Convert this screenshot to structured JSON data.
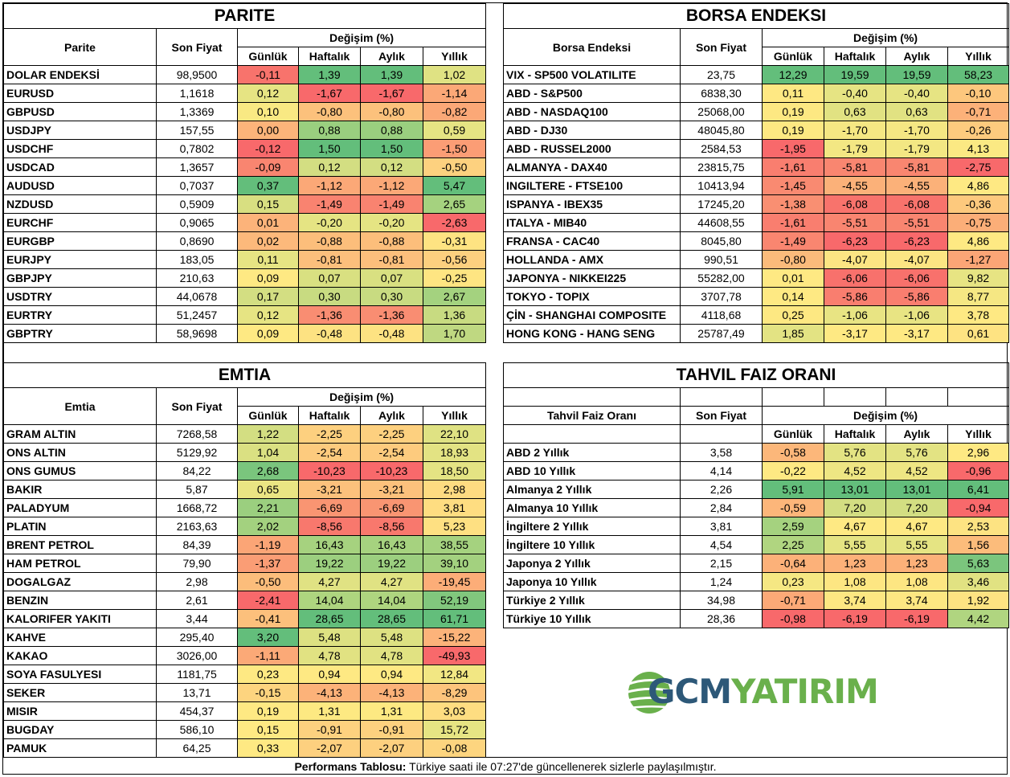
{
  "common": {
    "price_header": "Son Fiyat",
    "change_header": "Değişim (%)",
    "periods": [
      "Günlük",
      "Haftalık",
      "Aylık",
      "Yıllık"
    ]
  },
  "parite": {
    "title": "PARITE",
    "name_header": "Parite",
    "rows": [
      {
        "name": "DOLAR ENDEKSİ",
        "price": "98,9500",
        "values": [
          "-0,11",
          "1,39",
          "1,39",
          "1,02"
        ]
      },
      {
        "name": "EURUSD",
        "price": "1,1618",
        "values": [
          "0,12",
          "-1,67",
          "-1,67",
          "-1,14"
        ]
      },
      {
        "name": "GBPUSD",
        "price": "1,3369",
        "values": [
          "0,10",
          "-0,80",
          "-0,80",
          "-0,82"
        ]
      },
      {
        "name": "USDJPY",
        "price": "157,55",
        "values": [
          "0,00",
          "0,88",
          "0,88",
          "0,59"
        ]
      },
      {
        "name": "USDCHF",
        "price": "0,7802",
        "values": [
          "-0,12",
          "1,50",
          "1,50",
          "-1,50"
        ]
      },
      {
        "name": "USDCAD",
        "price": "1,3657",
        "values": [
          "-0,09",
          "0,12",
          "0,12",
          "-0,50"
        ]
      },
      {
        "name": "AUDUSD",
        "price": "0,7037",
        "values": [
          "0,37",
          "-1,12",
          "-1,12",
          "5,47"
        ]
      },
      {
        "name": "NZDUSD",
        "price": "0,5909",
        "values": [
          "0,15",
          "-1,49",
          "-1,49",
          "2,65"
        ]
      },
      {
        "name": "EURCHF",
        "price": "0,9065",
        "values": [
          "0,01",
          "-0,20",
          "-0,20",
          "-2,63"
        ]
      },
      {
        "name": "EURGBP",
        "price": "0,8690",
        "values": [
          "0,02",
          "-0,88",
          "-0,88",
          "-0,31"
        ]
      },
      {
        "name": "EURJPY",
        "price": "183,05",
        "values": [
          "0,11",
          "-0,81",
          "-0,81",
          "-0,56"
        ]
      },
      {
        "name": "GBPJPY",
        "price": "210,63",
        "values": [
          "0,09",
          "0,07",
          "0,07",
          "-0,25"
        ]
      },
      {
        "name": "USDTRY",
        "price": "44,0678",
        "values": [
          "0,17",
          "0,30",
          "0,30",
          "2,67"
        ]
      },
      {
        "name": "EURTRY",
        "price": "51,2457",
        "values": [
          "0,12",
          "-1,36",
          "-1,36",
          "1,36"
        ]
      },
      {
        "name": "GBPTRY",
        "price": "58,9698",
        "values": [
          "0,09",
          "-0,48",
          "-0,48",
          "1,70"
        ]
      }
    ],
    "colors": [
      [
        "#f8736c",
        "#63be7b",
        "#63be7b",
        "#dfe283"
      ],
      [
        "#e6e483",
        "#f8696b",
        "#f8696b",
        "#fba877"
      ],
      [
        "#f9e983",
        "#fcc17c",
        "#fcc17c",
        "#fba877"
      ],
      [
        "#fcb47a",
        "#9acf7f",
        "#9acf7f",
        "#e6e483"
      ],
      [
        "#f8696b",
        "#63be7b",
        "#63be7b",
        "#fb9d75"
      ],
      [
        "#f98570",
        "#d3de82",
        "#d3de82",
        "#fdd17f"
      ],
      [
        "#63be7b",
        "#fba877",
        "#fba877",
        "#63be7b"
      ],
      [
        "#d8df81",
        "#f98370",
        "#f98370",
        "#a5d27f"
      ],
      [
        "#fcb37a",
        "#e5e483",
        "#e5e483",
        "#f8696b"
      ],
      [
        "#fcb97b",
        "#fcbe7b",
        "#fcbe7b",
        "#fee382"
      ],
      [
        "#e6e483",
        "#fcbf7c",
        "#fcbf7c",
        "#fdd07f"
      ],
      [
        "#fee983",
        "#d9e081",
        "#d9e081",
        "#fee582"
      ],
      [
        "#d3de82",
        "#c8db81",
        "#c8db81",
        "#a4d27f"
      ],
      [
        "#e6e483",
        "#f98d72",
        "#f98d72",
        "#c8db81"
      ],
      [
        "#fee983",
        "#fde282",
        "#fde282",
        "#bfd881"
      ]
    ]
  },
  "borsa": {
    "title": "BORSA ENDEKSI",
    "name_header": "Borsa Endeksi",
    "rows": [
      {
        "name": "VIX  - SP500 VOLATILITE",
        "price": "23,75",
        "values": [
          "12,29",
          "19,59",
          "19,59",
          "58,23"
        ]
      },
      {
        "name": "ABD - S&P500",
        "price": "6838,30",
        "values": [
          "0,11",
          "-0,40",
          "-0,40",
          "-0,10"
        ]
      },
      {
        "name": "ABD - NASDAQ100",
        "price": "25068,00",
        "values": [
          "0,19",
          "0,63",
          "0,63",
          "-0,71"
        ]
      },
      {
        "name": "ABD - DJ30",
        "price": "48045,80",
        "values": [
          "0,19",
          "-1,70",
          "-1,70",
          "-0,26"
        ]
      },
      {
        "name": "ABD - RUSSEL2000",
        "price": "2584,53",
        "values": [
          "-1,95",
          "-1,79",
          "-1,79",
          "4,13"
        ]
      },
      {
        "name": "ALMANYA - DAX40",
        "price": "23815,75",
        "values": [
          "-1,61",
          "-5,81",
          "-5,81",
          "-2,75"
        ]
      },
      {
        "name": "INGILTERE - FTSE100",
        "price": "10413,94",
        "values": [
          "-1,45",
          "-4,55",
          "-4,55",
          "4,86"
        ]
      },
      {
        "name": "ISPANYA - IBEX35",
        "price": "17245,20",
        "values": [
          "-1,38",
          "-6,08",
          "-6,08",
          "-0,36"
        ]
      },
      {
        "name": "ITALYA - MIB40",
        "price": "44608,55",
        "values": [
          "-1,61",
          "-5,51",
          "-5,51",
          "-0,75"
        ]
      },
      {
        "name": "FRANSA - CAC40",
        "price": "8045,80",
        "values": [
          "-1,49",
          "-6,23",
          "-6,23",
          "4,86"
        ]
      },
      {
        "name": "HOLLANDA - AMX",
        "price": "990,51",
        "values": [
          "-0,80",
          "-4,07",
          "-4,07",
          "-1,27"
        ]
      },
      {
        "name": "JAPONYA - NIKKEI225",
        "price": "55282,00",
        "values": [
          "0,01",
          "-6,06",
          "-6,06",
          "9,82"
        ]
      },
      {
        "name": "TOKYO - TOPIX",
        "price": "3707,78",
        "values": [
          "0,14",
          "-5,86",
          "-5,86",
          "8,77"
        ]
      },
      {
        "name": "ÇİN - SHANGHAI COMPOSITE",
        "price": "4118,68",
        "values": [
          "0,25",
          "-1,06",
          "-1,06",
          "3,78"
        ]
      },
      {
        "name": "HONG KONG - HANG SENG",
        "price": "25787,49",
        "values": [
          "1,85",
          "-3,17",
          "-3,17",
          "0,61"
        ]
      }
    ],
    "colors": [
      [
        "#63be7b",
        "#63be7b",
        "#63be7b",
        "#63be7b"
      ],
      [
        "#fee883",
        "#e6e483",
        "#e6e483",
        "#fdc77d"
      ],
      [
        "#fde882",
        "#e1e282",
        "#e1e282",
        "#fcb179"
      ],
      [
        "#fde882",
        "#f5e783",
        "#f5e783",
        "#fdcb7e"
      ],
      [
        "#f8696b",
        "#f3e783",
        "#f3e783",
        "#fbe983"
      ],
      [
        "#f97e6f",
        "#f98670",
        "#f98670",
        "#f8696b"
      ],
      [
        "#f98a71",
        "#fbb179",
        "#fbb179",
        "#fee983"
      ],
      [
        "#f98f72",
        "#f8736c",
        "#f8736c",
        "#fdc97d"
      ],
      [
        "#f97e6f",
        "#f98570",
        "#f98570",
        "#fbae78"
      ],
      [
        "#f98670",
        "#f8696b",
        "#f8696b",
        "#fee983"
      ],
      [
        "#fbbb7b",
        "#fce583",
        "#fce583",
        "#fba576"
      ],
      [
        "#fee983",
        "#f8716c",
        "#f8716c",
        "#e7e483"
      ],
      [
        "#fee983",
        "#f97e6f",
        "#f97e6f",
        "#f5e783"
      ],
      [
        "#fde882",
        "#e8e483",
        "#e8e483",
        "#fee983"
      ],
      [
        "#e3e383",
        "#fee983",
        "#fee983",
        "#fee382"
      ]
    ]
  },
  "emtia": {
    "title": "EMTIA",
    "name_header": "Emtia",
    "rows": [
      {
        "name": "GRAM ALTIN",
        "price": "7268,58",
        "values": [
          "1,22",
          "-2,25",
          "-2,25",
          "22,10"
        ]
      },
      {
        "name": "ONS ALTIN",
        "price": "5129,92",
        "values": [
          "1,04",
          "-2,54",
          "-2,54",
          "18,93"
        ]
      },
      {
        "name": "ONS GUMUS",
        "price": "84,22",
        "values": [
          "2,68",
          "-10,23",
          "-10,23",
          "18,50"
        ]
      },
      {
        "name": "BAKIR",
        "price": "5,87",
        "values": [
          "0,65",
          "-3,21",
          "-3,21",
          "2,98"
        ]
      },
      {
        "name": "PALADYUM",
        "price": "1668,72",
        "values": [
          "2,21",
          "-6,69",
          "-6,69",
          "3,81"
        ]
      },
      {
        "name": "PLATIN",
        "price": "2163,63",
        "values": [
          "2,02",
          "-8,56",
          "-8,56",
          "5,23"
        ]
      },
      {
        "name": "BRENT PETROL",
        "price": "84,39",
        "values": [
          "-1,19",
          "16,43",
          "16,43",
          "38,55"
        ]
      },
      {
        "name": "HAM PETROL",
        "price": "79,90",
        "values": [
          "-1,37",
          "19,22",
          "19,22",
          "39,10"
        ]
      },
      {
        "name": "DOGALGAZ",
        "price": "2,98",
        "values": [
          "-0,50",
          "4,27",
          "4,27",
          "-19,45"
        ]
      },
      {
        "name": "BENZIN",
        "price": "2,61",
        "values": [
          "-2,41",
          "14,04",
          "14,04",
          "52,19"
        ]
      },
      {
        "name": "KALORIFER YAKITI",
        "price": "3,44",
        "values": [
          "-0,41",
          "28,65",
          "28,65",
          "61,71"
        ]
      },
      {
        "name": "KAHVE",
        "price": "295,40",
        "values": [
          "3,20",
          "5,48",
          "5,48",
          "-15,22"
        ]
      },
      {
        "name": "KAKAO",
        "price": "3026,00",
        "values": [
          "-1,11",
          "4,78",
          "4,78",
          "-49,93"
        ]
      },
      {
        "name": "SOYA FASULYESI",
        "price": "1181,75",
        "values": [
          "0,23",
          "0,94",
          "0,94",
          "12,84"
        ]
      },
      {
        "name": "SEKER",
        "price": "13,71",
        "values": [
          "-0,15",
          "-4,13",
          "-4,13",
          "-8,29"
        ]
      },
      {
        "name": "MISIR",
        "price": "454,37",
        "values": [
          "0,19",
          "1,31",
          "1,31",
          "3,03"
        ]
      },
      {
        "name": "BUGDAY",
        "price": "586,10",
        "values": [
          "0,15",
          "-0,91",
          "-0,91",
          "15,72"
        ]
      },
      {
        "name": "PAMUK",
        "price": "64,25",
        "values": [
          "0,33",
          "-2,07",
          "-2,07",
          "-0,08"
        ]
      }
    ],
    "colors": [
      [
        "#d3de82",
        "#fdd07f",
        "#fdd07f",
        "#dfe283"
      ],
      [
        "#dae082",
        "#fdcb7e",
        "#fdcb7e",
        "#e3e383"
      ],
      [
        "#7ac57d",
        "#f8696b",
        "#f8696b",
        "#e4e383"
      ],
      [
        "#eae583",
        "#fcc17c",
        "#fcc17c",
        "#fedb81"
      ],
      [
        "#9bcf7f",
        "#f99572",
        "#f99572",
        "#fedd81"
      ],
      [
        "#a3d17f",
        "#f8786d",
        "#f8786d",
        "#fee082"
      ],
      [
        "#fba576",
        "#a6d27f",
        "#a6d27f",
        "#a5d27f"
      ],
      [
        "#fa9d75",
        "#9ccf7f",
        "#9ccf7f",
        "#a3d17f"
      ],
      [
        "#fcbd7b",
        "#e0e283",
        "#e0e283",
        "#fcad78"
      ],
      [
        "#f8696b",
        "#aed57f",
        "#aed57f",
        "#81c77d"
      ],
      [
        "#fcc07c",
        "#63be7b",
        "#63be7b",
        "#63be7b"
      ],
      [
        "#63be7b",
        "#dde182",
        "#dde182",
        "#fcb37a"
      ],
      [
        "#fba977",
        "#e1e282",
        "#e1e282",
        "#f8696b"
      ],
      [
        "#fee983",
        "#fee983",
        "#fee983",
        "#f2e783"
      ],
      [
        "#fdd47f",
        "#fcb279",
        "#fcb279",
        "#fdc47c"
      ],
      [
        "#fee983",
        "#fde982",
        "#fde982",
        "#fedd81"
      ],
      [
        "#fee983",
        "#fdd17f",
        "#fdd17f",
        "#e6e483"
      ],
      [
        "#fee983",
        "#fdd07f",
        "#fdd07f",
        "#fdd57f"
      ]
    ]
  },
  "tahvil": {
    "title": "TAHVIL FAIZ ORANI",
    "name_header": "Tahvil Faiz Oranı",
    "rows": [
      {
        "name": "ABD 2 Yıllık",
        "price": "3,58",
        "values": [
          "-0,58",
          "5,76",
          "5,76",
          "2,96"
        ]
      },
      {
        "name": "ABD 10 Yıllık",
        "price": "4,14",
        "values": [
          "-0,22",
          "4,52",
          "4,52",
          "-0,96"
        ]
      },
      {
        "name": "Almanya 2 Yıllık",
        "price": "2,26",
        "values": [
          "5,91",
          "13,01",
          "13,01",
          "6,41"
        ]
      },
      {
        "name": "Almanya 10 Yıllık",
        "price": "2,84",
        "values": [
          "-0,59",
          "7,20",
          "7,20",
          "-0,94"
        ]
      },
      {
        "name": "İngiltere 2 Yıllık",
        "price": "3,81",
        "values": [
          "2,59",
          "4,67",
          "4,67",
          "2,53"
        ]
      },
      {
        "name": "İngiltere 10 Yıllık",
        "price": "4,54",
        "values": [
          "2,25",
          "5,55",
          "5,55",
          "1,56"
        ]
      },
      {
        "name": "Japonya 2 Yıllık",
        "price": "2,15",
        "values": [
          "-0,64",
          "1,23",
          "1,23",
          "5,63"
        ]
      },
      {
        "name": "Japonya 10 Yıllık",
        "price": "1,24",
        "values": [
          "0,23",
          "1,08",
          "1,08",
          "3,46"
        ]
      },
      {
        "name": "Türkiye 2 Yıllık",
        "price": "34,98",
        "values": [
          "-0,71",
          "3,74",
          "3,74",
          "1,92"
        ]
      },
      {
        "name": "Türkiye 10 Yıllık",
        "price": "28,36",
        "values": [
          "-0,98",
          "-6,19",
          "-6,19",
          "4,42"
        ]
      }
    ],
    "colors": [
      [
        "#fcb77a",
        "#e3e383",
        "#e3e383",
        "#fee983"
      ],
      [
        "#fee983",
        "#eee683",
        "#eee683",
        "#f8696b"
      ],
      [
        "#63be7b",
        "#63be7b",
        "#63be7b",
        "#63be7b"
      ],
      [
        "#fcb67a",
        "#d3de82",
        "#d3de82",
        "#f8696b"
      ],
      [
        "#a5d27f",
        "#fee983",
        "#fee983",
        "#fde382"
      ],
      [
        "#b0d580",
        "#e5e483",
        "#e5e483",
        "#fcbc7b"
      ],
      [
        "#fcb179",
        "#fcb179",
        "#fcb179",
        "#7bc57d"
      ],
      [
        "#f5e783",
        "#fde682",
        "#fde682",
        "#e1e282"
      ],
      [
        "#fca977",
        "#fde782",
        "#fde782",
        "#fde382"
      ],
      [
        "#f8696b",
        "#f8696b",
        "#f8696b",
        "#b0d580"
      ]
    ]
  },
  "logo": {
    "part1": "GCM",
    "part2": "YATIRIM",
    "color1": "#2d5878",
    "color2": "#6ab04c"
  },
  "footer": {
    "label": "Performans Tablosu:",
    "text": " Türkiye saati ile 07:27'de güncellenerek sizlerle paylaşılmıştır."
  }
}
